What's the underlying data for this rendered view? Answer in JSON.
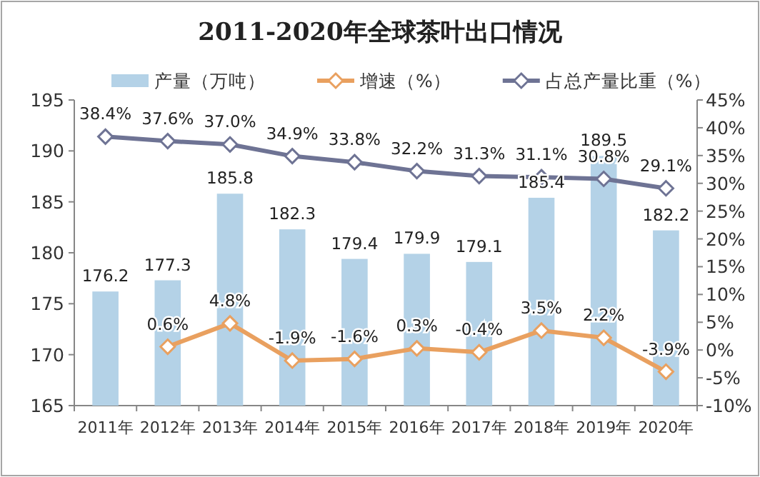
{
  "chart_data": {
    "type": "bar",
    "title": "2011-2020年全球茶叶出口情况",
    "categories": [
      "2011年",
      "2012年",
      "2013年",
      "2014年",
      "2015年",
      "2016年",
      "2017年",
      "2018年",
      "2019年",
      "2020年"
    ],
    "series": [
      {
        "name": "产量（万吨）",
        "color": "#b4d2e7",
        "values": [
          176.2,
          177.3,
          185.8,
          182.3,
          179.4,
          179.9,
          179.1,
          185.4,
          189.5,
          182.2
        ],
        "value_labels": [
          "176.2",
          "177.3",
          "185.8",
          "182.3",
          "179.4",
          "179.9",
          "179.1",
          "185.4",
          "189.5",
          "182.2"
        ]
      },
      {
        "name": "增速（%）",
        "type": "line",
        "axis": "y2",
        "color": "#e9a05f",
        "values": [
          null,
          0.6,
          4.8,
          -1.9,
          -1.6,
          0.3,
          -0.4,
          3.5,
          2.2,
          -3.9
        ],
        "value_labels": [
          null,
          "0.6%",
          "4.8%",
          "-1.9%",
          "-1.6%",
          "0.3%",
          "-0.4%",
          "3.5%",
          "2.2%",
          "-3.9%"
        ]
      },
      {
        "name": "占总产量比重（%）",
        "type": "line",
        "axis": "y2",
        "color": "#6e7394",
        "values": [
          38.4,
          37.6,
          37.0,
          34.9,
          33.8,
          32.2,
          31.3,
          31.1,
          30.8,
          29.1
        ],
        "value_labels": [
          "38.4%",
          "37.6%",
          "37.0%",
          "34.9%",
          "33.8%",
          "32.2%",
          "31.3%",
          "31.1%",
          "30.8%",
          "29.1%"
        ]
      }
    ],
    "ylim": [
      165,
      195
    ],
    "yticks": [
      165,
      170,
      175,
      180,
      185,
      190,
      195
    ],
    "y2lim": [
      -10,
      45
    ],
    "y2ticks": [
      {
        "value": -10,
        "label": "-10%"
      },
      {
        "value": -5,
        "label": "-5%"
      },
      {
        "value": 0,
        "label": "0%"
      },
      {
        "value": 5,
        "label": "5%"
      },
      {
        "value": 10,
        "label": "10%"
      },
      {
        "value": 15,
        "label": "15%"
      },
      {
        "value": 20,
        "label": "20%"
      },
      {
        "value": 25,
        "label": "25%"
      },
      {
        "value": 30,
        "label": "30%"
      },
      {
        "value": 35,
        "label": "35%"
      },
      {
        "value": 40,
        "label": "40%"
      },
      {
        "value": 45,
        "label": "45%"
      }
    ],
    "legend": "top",
    "marker": "diamond",
    "line_style": "solid",
    "grid": false
  }
}
